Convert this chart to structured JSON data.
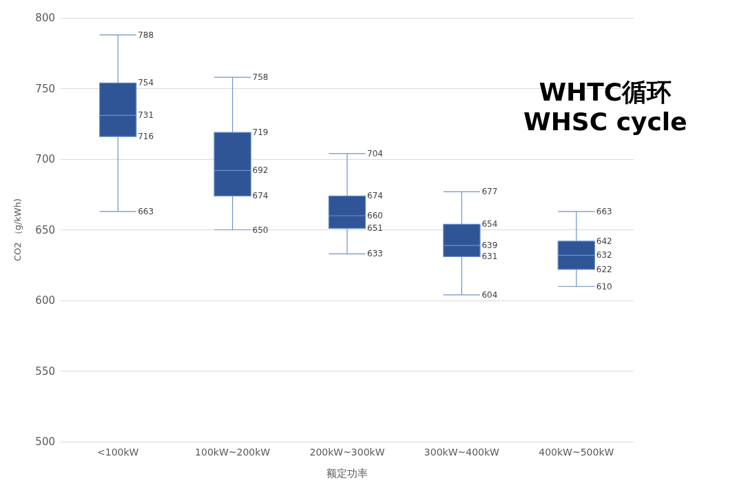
{
  "chart_data": {
    "type": "box",
    "xlabel": "额定功率",
    "ylabel": "CO2 （g/kWh)",
    "annotations": [
      "WHTC循环",
      "WHSC cycle",
      {
        "text": "663",
        "x": "<100kW",
        "y": 663
      },
      {
        "text": "716",
        "x": "<100kW",
        "y": 716
      },
      {
        "text": "731",
        "x": "<100kW",
        "y": 731
      },
      {
        "text": "754",
        "x": "<100kW",
        "y": 754
      },
      {
        "text": "788",
        "x": "<100kW",
        "y": 788
      },
      {
        "text": "650",
        "x": "100kW~200kW",
        "y": 650
      },
      {
        "text": "674",
        "x": "100kW~200kW",
        "y": 674
      },
      {
        "text": "692",
        "x": "100kW~200kW",
        "y": 692
      },
      {
        "text": "719",
        "x": "100kW~200kW",
        "y": 719
      },
      {
        "text": "758",
        "x": "100kW~200kW",
        "y": 758
      },
      {
        "text": "633",
        "x": "200kW~300kW",
        "y": 633
      },
      {
        "text": "651",
        "x": "200kW~300kW",
        "y": 651
      },
      {
        "text": "660",
        "x": "200kW~300kW",
        "y": 660
      },
      {
        "text": "674",
        "x": "200kW~300kW",
        "y": 674
      },
      {
        "text": "704",
        "x": "200kW~300kW",
        "y": 704
      },
      {
        "text": "604",
        "x": "300kW~400kW",
        "y": 604
      },
      {
        "text": "631",
        "x": "300kW~400kW",
        "y": 631
      },
      {
        "text": "639",
        "x": "300kW~400kW",
        "y": 639
      },
      {
        "text": "654",
        "x": "300kW~400kW",
        "y": 654
      },
      {
        "text": "677",
        "x": "300kW~400kW",
        "y": 677
      },
      {
        "text": "610",
        "x": "400kW~500kW",
        "y": 610
      },
      {
        "text": "622",
        "x": "400kW~500kW",
        "y": 622
      },
      {
        "text": "632",
        "x": "400kW~500kW",
        "y": 632
      },
      {
        "text": "642",
        "x": "400kW~500kW",
        "y": 642
      },
      {
        "text": "663",
        "x": "400kW~500kW",
        "y": 663
      }
    ],
    "categories": [
      "<100kW",
      "100kW~200kW",
      "200kW~300kW",
      "300kW~400kW",
      "400kW~500kW"
    ],
    "boxes": [
      {
        "low": 663,
        "q1": 716,
        "median": 731,
        "q3": 754,
        "high": 788
      },
      {
        "low": 650,
        "q1": 674,
        "median": 692,
        "q3": 719,
        "high": 758
      },
      {
        "low": 633,
        "q1": 651,
        "median": 660,
        "q3": 674,
        "high": 704
      },
      {
        "low": 604,
        "q1": 631,
        "median": 639,
        "q3": 654,
        "high": 677
      },
      {
        "low": 610,
        "q1": 622,
        "median": 632,
        "q3": 642,
        "high": 663
      }
    ],
    "color": "#2f5597",
    "ylim": [
      500,
      800
    ],
    "yticks": [
      500,
      550,
      600,
      650,
      700,
      750,
      800
    ],
    "grid": "y"
  }
}
